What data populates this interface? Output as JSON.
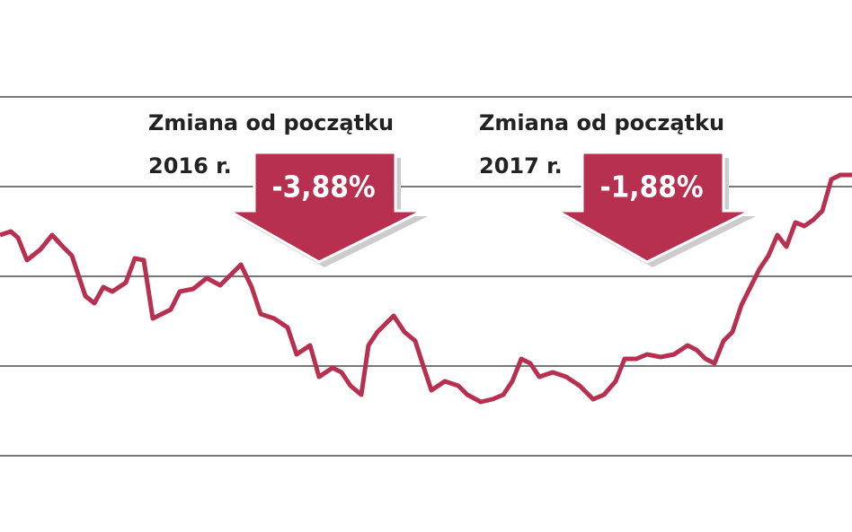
{
  "chart_data": {
    "type": "line",
    "annotations": [
      {
        "text": "Zmiana od początku",
        "period": "2016 r.",
        "change": "-3,88%"
      },
      {
        "text": "Zmiana od początku",
        "period": "2017 r.",
        "change": "-1,88%"
      }
    ],
    "x": [
      0,
      12,
      20,
      30,
      45,
      58,
      70,
      80,
      95,
      105,
      115,
      125,
      140,
      150,
      160,
      170,
      180,
      190,
      200,
      215,
      230,
      245,
      258,
      268,
      280,
      290,
      305,
      320,
      330,
      345,
      355,
      370,
      380,
      390,
      402,
      410,
      420,
      438,
      450,
      462,
      470,
      480,
      495,
      510,
      520,
      535,
      548,
      560,
      570,
      580,
      590,
      600,
      615,
      630,
      645,
      660,
      672,
      685,
      695,
      708,
      720,
      735,
      750,
      765,
      775,
      785,
      795,
      805,
      815,
      825,
      835,
      845,
      855,
      865,
      875,
      885,
      895,
      905,
      915,
      925,
      935,
      948
    ],
    "series": [
      {
        "color": "#b8304f",
        "values": [
          2.46,
          2.5,
          2.43,
          2.18,
          2.3,
          2.46,
          2.33,
          2.23,
          1.78,
          1.7,
          1.88,
          1.83,
          1.93,
          2.2,
          2.18,
          1.53,
          1.58,
          1.63,
          1.83,
          1.86,
          1.98,
          1.9,
          2.03,
          2.13,
          1.88,
          1.58,
          1.53,
          1.43,
          1.13,
          1.23,
          0.88,
          0.98,
          0.93,
          0.78,
          0.68,
          1.23,
          1.38,
          1.56,
          1.38,
          1.28,
          1.03,
          0.73,
          0.83,
          0.78,
          0.68,
          0.6,
          0.63,
          0.68,
          0.83,
          1.08,
          1.03,
          0.88,
          0.93,
          0.88,
          0.78,
          0.63,
          0.68,
          0.83,
          1.08,
          1.08,
          1.13,
          1.1,
          1.13,
          1.23,
          1.18,
          1.08,
          1.03,
          1.28,
          1.38,
          1.68,
          1.88,
          2.08,
          2.23,
          2.46,
          2.33,
          2.6,
          2.56,
          2.63,
          2.73,
          3.08,
          3.13,
          3.13
        ]
      }
    ],
    "xlim": [
      0,
      948
    ],
    "ylim": [
      -0.85,
      5.08
    ],
    "yticks": [
      0,
      1,
      2,
      3,
      4
    ],
    "grid": true
  }
}
